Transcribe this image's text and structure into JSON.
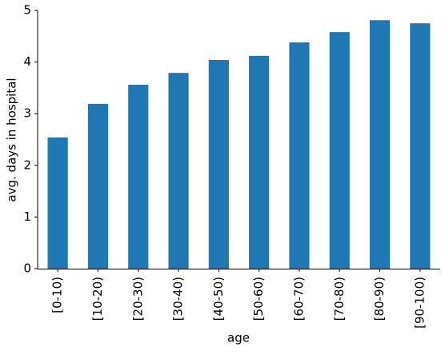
{
  "chart_data": {
    "type": "bar",
    "x_label": "age",
    "y_label": "avg. days in hospital",
    "categories": [
      "[0-10)",
      "[10-20)",
      "[20-30)",
      "[30-40)",
      "[40-50)",
      "[50-60)",
      "[60-70)",
      "[70-80)",
      "[80-90)",
      "[90-100)"
    ],
    "values": [
      2.54,
      3.19,
      3.56,
      3.79,
      4.04,
      4.12,
      4.38,
      4.58,
      4.81,
      4.75
    ],
    "color": "#1f77b4",
    "ylim": [
      0,
      5
    ],
    "yticks": [
      0,
      1,
      2,
      3,
      4,
      5
    ],
    "grid": false
  }
}
